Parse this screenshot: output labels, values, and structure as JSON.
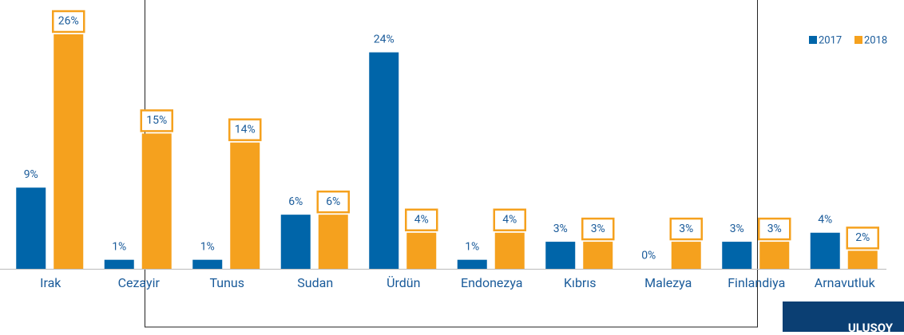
{
  "chart_data": {
    "type": "bar",
    "categories": [
      "Irak",
      "Cezayir",
      "Tunus",
      "Sudan",
      "Ürdün",
      "Endonezya",
      "Kıbrıs",
      "Malezya",
      "Finlandiya",
      "Arnavutluk"
    ],
    "series": [
      {
        "name": "2017",
        "color": "#0065a9",
        "values": [
          9,
          1,
          1,
          6,
          24,
          1,
          3,
          0,
          3,
          4
        ],
        "value_labels": [
          "9%",
          "1%",
          "1%",
          "6%",
          "24%",
          "1%",
          "3%",
          "0%",
          "3%",
          "4%"
        ]
      },
      {
        "name": "2018",
        "color": "#f5a11e",
        "values": [
          26,
          15,
          14,
          6,
          4,
          4,
          3,
          3,
          3,
          2
        ],
        "value_labels": [
          "26%",
          "15%",
          "14%",
          "6%",
          "4%",
          "4%",
          "3%",
          "3%",
          "3%",
          "2%"
        ]
      }
    ],
    "legend": "top-right",
    "logo": "ULUSOY"
  }
}
